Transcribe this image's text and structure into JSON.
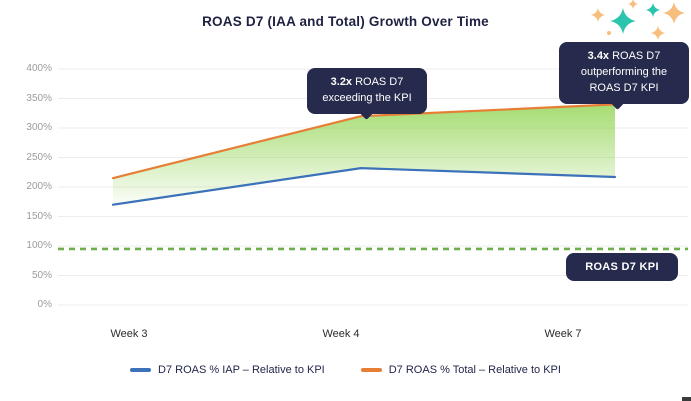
{
  "title": "ROAS D7 (IAA and Total) Growth Over Time",
  "colors": {
    "title": "#1E2142",
    "navy": "#262A4C",
    "iap-blue": "#3C72B9",
    "total-orange": "#E67F35",
    "kpi-green": "#6FAE4B",
    "area-green": "#8CD24A",
    "tick-gray": "#9B9B9B",
    "grid": "#EDEDED",
    "sparkle-teal": "#2BC5AE",
    "sparkle-peach": "#F8BE7E"
  },
  "chart_data": {
    "type": "line",
    "categories": [
      "Week 3",
      "Week 4",
      "Week 7"
    ],
    "series": [
      {
        "name": "D7 ROAS % IAP – Relative to KPI",
        "color_key": "iap-blue",
        "values": [
          170,
          232,
          217
        ]
      },
      {
        "name": "D7 ROAS % Total – Relative to KPI",
        "color_key": "total-orange",
        "values": [
          215,
          320,
          340
        ]
      }
    ],
    "area_between_series": true,
    "kpi": {
      "label": "ROAS D7 KPI",
      "value": 95,
      "style": "dashed"
    },
    "ylim": [
      0,
      400
    ],
    "yticks": [
      0,
      50,
      100,
      150,
      200,
      250,
      300,
      350,
      400
    ],
    "ytick_suffix": "%",
    "grid": "horizontal",
    "legend_position": "bottom"
  },
  "annotations": [
    {
      "bold": "3.2x",
      "rest": "ROAS D7",
      "line2": "exceeding the KPI"
    },
    {
      "bold": "3.4x",
      "rest": "ROAS D7",
      "line2": "outperforming the",
      "line3": "ROAS D7 KPI"
    }
  ],
  "kpi_badge": "ROAS D7 KPI"
}
